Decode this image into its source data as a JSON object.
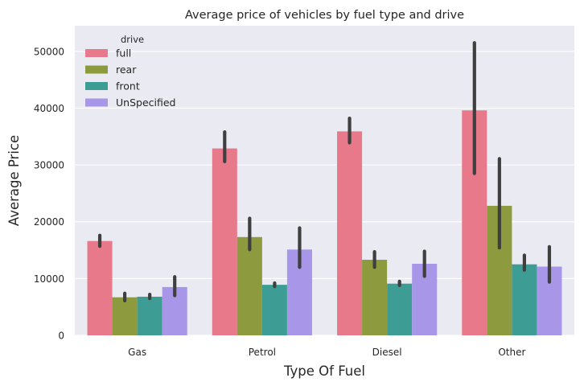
{
  "colors": {
    "background": "#EAEAF2",
    "grid": "#FFFFFF",
    "errorbar": "#3F3F3F",
    "text": "#262626"
  },
  "chart_data": {
    "type": "bar",
    "title": "Average price of vehicles by fuel type and drive",
    "xlabel": "Type Of Fuel",
    "ylabel": "Average Price",
    "ylim": [
      0,
      54500
    ],
    "yticks": [
      0,
      10000,
      20000,
      30000,
      40000,
      50000
    ],
    "categories": [
      "Gas",
      "Petrol",
      "Diesel",
      "Other"
    ],
    "grid": true,
    "legend": {
      "title": "drive",
      "position": "top-left"
    },
    "series": [
      {
        "name": "full",
        "color": "#E8798B",
        "values": [
          16600,
          32900,
          35900,
          39600
        ],
        "err_low": [
          15700,
          30600,
          33900,
          28500
        ],
        "err_high": [
          17600,
          35800,
          38200,
          51500
        ]
      },
      {
        "name": "rear",
        "color": "#8E9A3E",
        "values": [
          6700,
          17300,
          13300,
          22800
        ],
        "err_low": [
          6100,
          15100,
          12000,
          15400
        ],
        "err_high": [
          7400,
          20600,
          14700,
          31100
        ]
      },
      {
        "name": "front",
        "color": "#3D9D94",
        "values": [
          6800,
          8900,
          9100,
          12500
        ],
        "err_low": [
          6500,
          8600,
          8800,
          11500
        ],
        "err_high": [
          7200,
          9200,
          9500,
          14100
        ]
      },
      {
        "name": "UnSpecified",
        "color": "#A897E8",
        "values": [
          8500,
          15100,
          12600,
          12100
        ],
        "err_low": [
          7000,
          12000,
          10400,
          9400
        ],
        "err_high": [
          10300,
          18900,
          14800,
          15600
        ]
      }
    ]
  }
}
